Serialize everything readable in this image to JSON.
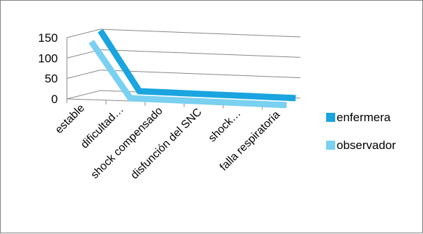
{
  "chart_data": {
    "type": "line",
    "subtype": "3d-line",
    "title": "",
    "xlabel": "",
    "ylabel": "",
    "ylim": [
      0,
      150
    ],
    "yticks": [
      0,
      50,
      100,
      150
    ],
    "grid": true,
    "legend_position": "right",
    "categories": [
      "estable",
      "dificultad…",
      "shock compensado",
      "disfunción del SNC",
      "shock…",
      "falla respiratoria"
    ],
    "series": [
      {
        "name": "enfermera",
        "color": "#1aa4e0",
        "values": [
          150,
          5,
          4,
          3,
          2,
          1
        ]
      },
      {
        "name": "observador",
        "color": "#79d0f1",
        "values": [
          140,
          5,
          4,
          3,
          2,
          1
        ]
      }
    ]
  }
}
